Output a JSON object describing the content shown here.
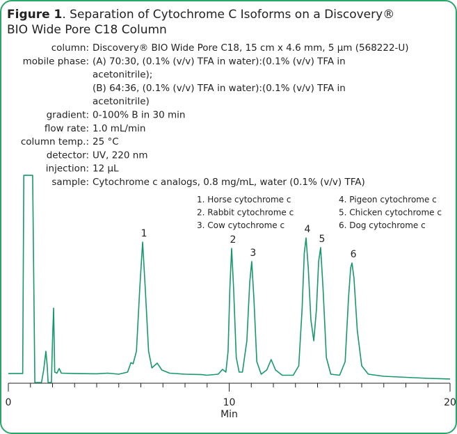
{
  "chart_data": {
    "type": "line",
    "title": {
      "bold": "Figure 1",
      "lines": [
        ". Separation of Cytochrome C Isoforms on a Discovery®",
        "BIO Wide Pore C18 Column"
      ]
    },
    "conditions": [
      {
        "label": "column:",
        "value": [
          "Discovery® BIO Wide Pore C18, 15 cm x 4.6 mm, 5 µm (568222-U)"
        ]
      },
      {
        "label": "mobile phase:",
        "value": [
          "(A) 70:30, (0.1% (v/v) TFA in water):(0.1% (v/v) TFA in",
          "acetonitrile);",
          "(B) 64:36, (0.1% (v/v) TFA in water):(0.1% (v/v) TFA in",
          "acetonitrile)"
        ]
      },
      {
        "label": "gradient:",
        "value": [
          "0-100% B in 30 min"
        ]
      },
      {
        "label": "flow rate:",
        "value": [
          "1.0 mL/min"
        ]
      },
      {
        "label": "column temp.:",
        "value": [
          "25 °C"
        ]
      },
      {
        "label": "detector:",
        "value": [
          "UV, 220 nm"
        ]
      },
      {
        "label": "injection:",
        "value": [
          "12 µL"
        ]
      },
      {
        "label": "sample:",
        "value": [
          "Cytochrome c analogs, 0.8 mg/mL, water (0.1% (v/v) TFA)"
        ]
      }
    ],
    "legend": [
      "1. Horse cytochrome c",
      "2. Rabbit cytochrome c",
      "3. Cow cytochrome c",
      "4. Pigeon cytochrome c",
      "5. Chicken cytochrome c",
      "6. Dog cytochrome c"
    ],
    "peaks": [
      {
        "label": "1",
        "x": 6.08,
        "y": 67.3
      },
      {
        "label": "2",
        "x": 10.11,
        "y": 64.3
      },
      {
        "label": "3",
        "x": 11.02,
        "y": 58
      },
      {
        "label": "4",
        "x": 13.48,
        "y": 69.3
      },
      {
        "label": "5",
        "x": 14.14,
        "y": 64.7
      },
      {
        "label": "6",
        "x": 15.56,
        "y": 57.3
      }
    ],
    "xlabel": "Min",
    "xlim": [
      0,
      20
    ],
    "xticks": [
      0,
      10,
      20
    ],
    "xminorticks": [
      1,
      2,
      3,
      4,
      5,
      6,
      7,
      8,
      9,
      11,
      12,
      13,
      14,
      15,
      16,
      17,
      18,
      19
    ],
    "ylim": [
      0,
      100
    ],
    "color": "#17986a",
    "x": [
      0,
      0.5,
      0.65,
      0.7,
      1.1,
      1.15,
      1.2,
      1.5,
      1.6,
      1.7,
      1.76,
      1.8,
      1.95,
      2.0,
      2.05,
      2.1,
      2.2,
      2.3,
      2.4,
      3,
      4,
      4.5,
      5,
      5.4,
      5.55,
      5.65,
      5.8,
      5.95,
      6.08,
      6.2,
      6.35,
      6.5,
      6.74,
      6.95,
      7.3,
      8,
      8.75,
      9,
      9.5,
      9.7,
      9.85,
      9.95,
      10.03,
      10.11,
      10.2,
      10.32,
      10.45,
      10.6,
      10.8,
      10.93,
      11.02,
      11.12,
      11.25,
      11.45,
      11.7,
      11.9,
      12.1,
      12.4,
      12.9,
      13.15,
      13.3,
      13.4,
      13.48,
      13.58,
      13.7,
      13.83,
      13.95,
      14.05,
      14.14,
      14.25,
      14.4,
      14.6,
      15.0,
      15.25,
      15.4,
      15.5,
      15.56,
      15.65,
      15.8,
      16.0,
      16.3,
      17,
      18,
      19,
      20
    ],
    "values": [
      4.3,
      4.3,
      4.3,
      99.3,
      99.3,
      50,
      0,
      0,
      6,
      15,
      8,
      0,
      0,
      20,
      35.7,
      5,
      4.5,
      6.7,
      4.5,
      4.3,
      4.2,
      4.5,
      4.0,
      5,
      9.5,
      9,
      15,
      45,
      67.3,
      45,
      15,
      7,
      9.3,
      6,
      4.5,
      4.0,
      3.8,
      3.5,
      4,
      6.3,
      5,
      15,
      45,
      64.3,
      45,
      12,
      5,
      5,
      20,
      48,
      58,
      40,
      10,
      4,
      6,
      11,
      6,
      3.5,
      3.5,
      8,
      35,
      62,
      69.3,
      55,
      30,
      20,
      35,
      58,
      64.7,
      45,
      12,
      4,
      3.5,
      10,
      40,
      55,
      57.3,
      50,
      25,
      8,
      4,
      3,
      2.5,
      2,
      1.7
    ]
  }
}
